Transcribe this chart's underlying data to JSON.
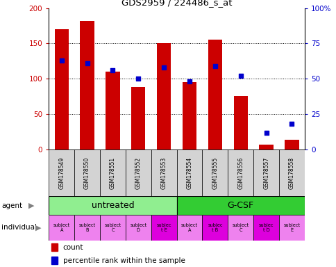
{
  "title": "GDS2959 / 224486_s_at",
  "samples": [
    "GSM178549",
    "GSM178550",
    "GSM178551",
    "GSM178552",
    "GSM178553",
    "GSM178554",
    "GSM178555",
    "GSM178556",
    "GSM178557",
    "GSM178558"
  ],
  "counts": [
    170,
    182,
    110,
    88,
    150,
    95,
    155,
    76,
    7,
    14
  ],
  "percentile_ranks": [
    63,
    61,
    56,
    50,
    58,
    48,
    59,
    52,
    12,
    18
  ],
  "ylim_left": [
    0,
    200
  ],
  "ylim_right": [
    0,
    100
  ],
  "yticks_left": [
    0,
    50,
    100,
    150,
    200
  ],
  "yticks_right": [
    0,
    25,
    50,
    75,
    100
  ],
  "yticklabels_right": [
    "0",
    "25",
    "50",
    "75",
    "100%"
  ],
  "agent_groups": [
    {
      "label": "untreated",
      "start": 0,
      "end": 5,
      "color": "#90ee90"
    },
    {
      "label": "G-CSF",
      "start": 5,
      "end": 10,
      "color": "#33cc33"
    }
  ],
  "individuals": [
    "subject\nA",
    "subject\nB",
    "subject\nC",
    "subject\nD",
    "subjec\nt E",
    "subject\nA",
    "subjec\nt B",
    "subject\nC",
    "subjec\nt D",
    "subject\nE"
  ],
  "individual_colors": [
    "#ee82ee",
    "#ee82ee",
    "#ee82ee",
    "#ee82ee",
    "#dd00dd",
    "#ee82ee",
    "#dd00dd",
    "#ee82ee",
    "#dd00dd",
    "#ee82ee"
  ],
  "bar_color": "#cc0000",
  "dot_color": "#0000cc",
  "tick_label_bg": "#d3d3d3",
  "bar_width": 0.55,
  "left_ylabel_color": "#cc0000",
  "right_ylabel_color": "#0000cc"
}
